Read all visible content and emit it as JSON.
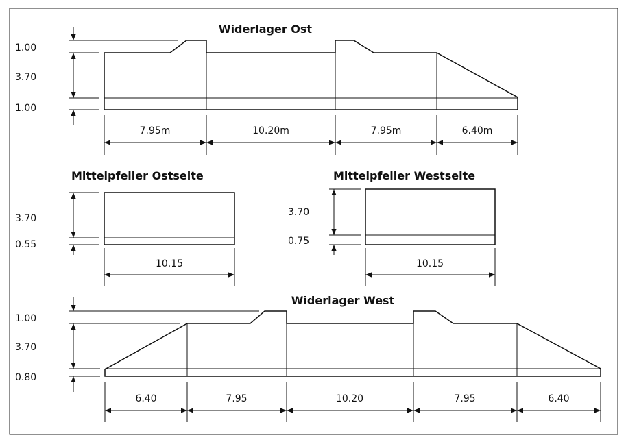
{
  "east_abutment": {
    "title": "Widerlager Ost",
    "heights": [
      "1.00",
      "3.70",
      "1.00"
    ],
    "spans": [
      "7.95m",
      "10.20m",
      "7.95m",
      "6.40m"
    ]
  },
  "pier_east": {
    "title": "Mittelpfeiler Ostseite",
    "heights": [
      "3.70",
      "0.55"
    ],
    "width": "10.15"
  },
  "pier_west": {
    "title": "Mittelpfeiler Westseite",
    "heights": [
      "3.70",
      "0.75"
    ],
    "width": "10.15"
  },
  "west_abutment": {
    "title": "Widerlager West",
    "heights": [
      "1.00",
      "3.70",
      "0.80"
    ],
    "spans": [
      "6.40",
      "7.95",
      "10.20",
      "7.95",
      "6.40"
    ]
  }
}
